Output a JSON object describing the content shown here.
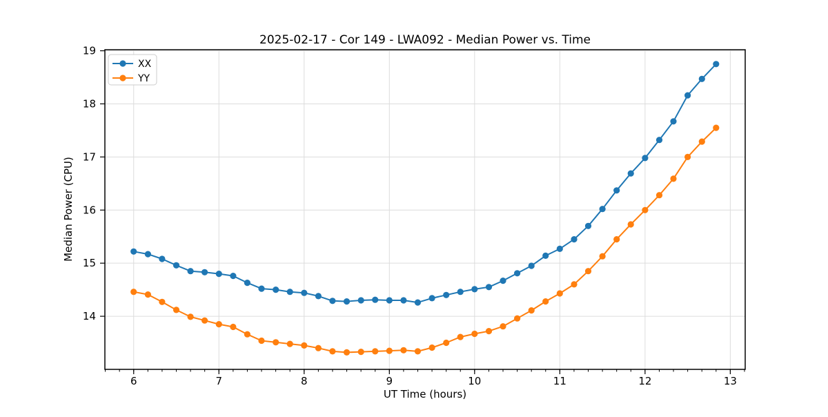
{
  "window": {
    "title": "2025-02-17 - Cor 149 - LWA092 - Median Power vs. Time"
  },
  "chart_data": {
    "type": "line",
    "title": "2025-02-17 - Cor 149 - LWA092 - Median Power vs. Time",
    "xlabel": "UT Time (hours)",
    "ylabel": "Median Power (CPU)",
    "xlim": [
      5.662,
      13.175
    ],
    "ylim": [
      13.0,
      19.02
    ],
    "x_ticks": [
      6,
      7,
      8,
      9,
      10,
      11,
      12,
      13
    ],
    "y_ticks": [
      14,
      15,
      16,
      17,
      18,
      19
    ],
    "x_minor_step": 0.1666667,
    "grid": true,
    "legend_position": "upper left",
    "marker": "circle",
    "x": [
      6.0,
      6.167,
      6.333,
      6.5,
      6.667,
      6.833,
      7.0,
      7.167,
      7.333,
      7.5,
      7.667,
      7.833,
      8.0,
      8.167,
      8.333,
      8.5,
      8.667,
      8.833,
      9.0,
      9.167,
      9.333,
      9.5,
      9.667,
      9.833,
      10.0,
      10.167,
      10.333,
      10.5,
      10.667,
      10.833,
      11.0,
      11.167,
      11.333,
      11.5,
      11.667,
      11.833,
      12.0,
      12.167,
      12.333,
      12.5,
      12.667,
      12.833
    ],
    "series": [
      {
        "name": "XX",
        "color": "#1f77b4",
        "values": [
          15.22,
          15.17,
          15.08,
          14.96,
          14.85,
          14.83,
          14.8,
          14.76,
          14.63,
          14.52,
          14.5,
          14.46,
          14.44,
          14.38,
          14.29,
          14.28,
          14.3,
          14.31,
          14.3,
          14.3,
          14.26,
          14.34,
          14.4,
          14.46,
          14.51,
          14.55,
          14.67,
          14.81,
          14.95,
          15.14,
          15.27,
          15.45,
          15.7,
          16.02,
          16.37,
          16.69,
          16.98,
          17.32,
          17.67,
          18.16,
          18.47,
          18.75
        ]
      },
      {
        "name": "YY",
        "color": "#ff7f0e",
        "values": [
          14.46,
          14.41,
          14.27,
          14.12,
          13.99,
          13.92,
          13.85,
          13.8,
          13.66,
          13.54,
          13.51,
          13.48,
          13.45,
          13.4,
          13.34,
          13.32,
          13.33,
          13.34,
          13.35,
          13.36,
          13.34,
          13.41,
          13.5,
          13.61,
          13.67,
          13.72,
          13.81,
          13.96,
          14.11,
          14.28,
          14.43,
          14.6,
          14.85,
          15.13,
          15.45,
          15.73,
          16.0,
          16.28,
          16.59,
          17.0,
          17.29,
          17.55
        ]
      }
    ],
    "style": {
      "grid_color": "#dcdcdc",
      "spine_color": "#000000",
      "background": "#ffffff",
      "legend_border": "#cccccc"
    }
  }
}
